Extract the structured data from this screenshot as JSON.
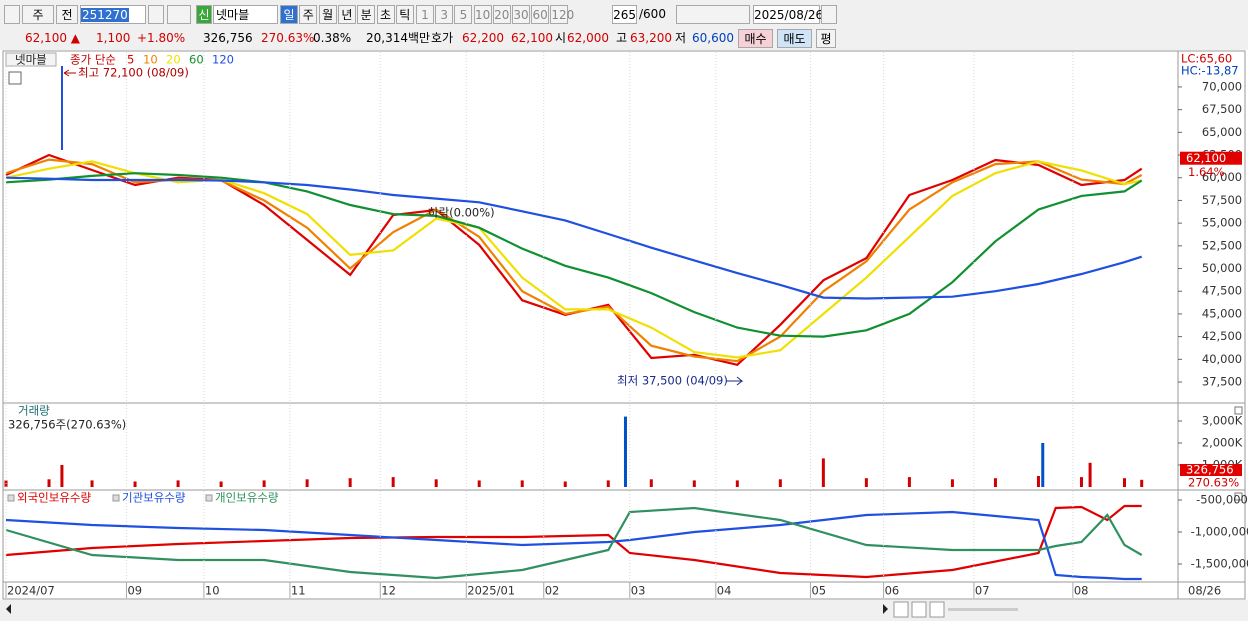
{
  "toolbar": {
    "period": "주",
    "compare": "전",
    "code": "251270",
    "badge": "신",
    "name": "넷마블",
    "intervals": [
      "일",
      "주",
      "월",
      "년",
      "분",
      "초",
      "틱"
    ],
    "multiples": [
      "1",
      "3",
      "5",
      "10",
      "20",
      "30",
      "60",
      "120"
    ],
    "count": "265",
    "max": "/600",
    "date": "2025/08/26"
  },
  "quote": {
    "price": "62,100 ▲",
    "change": "1,100",
    "change_pct": "+1.80%",
    "volume": "326,756",
    "volume_pct": "270.63%",
    "turnover": "0.38%",
    "amount": "20,314백만",
    "bid_ask_label": "호가",
    "ask": "62,200",
    "bid": "62,100",
    "open_label": "시",
    "open": "62,000",
    "high_label": "고",
    "high": "63,200",
    "low_label": "저",
    "low": "60,600",
    "buy": "매수",
    "sell": "매도",
    "avg": "평"
  },
  "chart_data": [
    {
      "type": "line",
      "title": "넷마블",
      "subtitle": "종가 단순",
      "x": [
        0,
        10,
        20,
        30,
        40,
        50,
        60,
        70,
        80,
        90,
        100,
        110,
        120,
        130,
        140,
        150,
        160,
        170,
        180,
        190,
        200,
        210,
        220,
        230,
        240,
        250,
        260,
        264
      ],
      "xlim": [
        0,
        265
      ],
      "series": [
        {
          "name": "5",
          "color": "#e00000",
          "values": [
            60300,
            62500,
            60850,
            59200,
            60000,
            59750,
            57000,
            53150,
            49300,
            55900,
            56450,
            52600,
            46500,
            44900,
            46000,
            40150,
            40500,
            39400,
            43800,
            48700,
            51150,
            58100,
            59750,
            61950,
            61400,
            59200,
            59750,
            61000
          ]
        },
        {
          "name": "10",
          "color": "#f08000",
          "values": [
            60500,
            62000,
            61500,
            59500,
            59800,
            59700,
            57500,
            54500,
            50000,
            54000,
            56500,
            53500,
            47500,
            45000,
            45800,
            41500,
            40300,
            39800,
            42500,
            47500,
            50800,
            56500,
            59500,
            61500,
            61800,
            59800,
            59300,
            60300
          ]
        },
        {
          "name": "20",
          "color": "#f0e000",
          "values": [
            60000,
            61000,
            61800,
            60500,
            59500,
            59800,
            58300,
            56000,
            51500,
            52000,
            55500,
            54500,
            49000,
            45500,
            45500,
            43500,
            40800,
            40200,
            41000,
            45000,
            49000,
            53500,
            58000,
            60500,
            61800,
            60800,
            59300,
            59700
          ]
        },
        {
          "name": "60",
          "color": "#109030",
          "values": [
            59500,
            59800,
            60200,
            60500,
            60300,
            60000,
            59500,
            58500,
            57000,
            56000,
            55800,
            54500,
            52200,
            50300,
            49000,
            47300,
            45200,
            43500,
            42600,
            42500,
            43200,
            45000,
            48500,
            53000,
            56500,
            58000,
            58500,
            59700
          ]
        },
        {
          "name": "120",
          "color": "#2050e0",
          "values": [
            60000,
            59900,
            59750,
            59750,
            59750,
            59700,
            59500,
            59200,
            58700,
            58100,
            57700,
            57300,
            56300,
            55300,
            53800,
            52300,
            50900,
            49500,
            48200,
            46800,
            46700,
            46800,
            46900,
            47500,
            48300,
            49400,
            50700,
            51300
          ]
        }
      ],
      "ylim": [
        35300,
        73850
      ],
      "yticks": [
        {
          "value": 37500,
          "label": "37,500"
        },
        {
          "value": 40000,
          "label": "40,000"
        },
        {
          "value": 42500,
          "label": "42,500"
        },
        {
          "value": 45000,
          "label": "45,000"
        },
        {
          "value": 47500,
          "label": "47,500"
        },
        {
          "value": 50000,
          "label": "50,000"
        },
        {
          "value": 52500,
          "label": "52,500"
        },
        {
          "value": 55000,
          "label": "55,000"
        },
        {
          "value": 57500,
          "label": "57,500"
        },
        {
          "value": 60000,
          "label": "60,000"
        },
        {
          "value": 62500,
          "label": "62,500"
        },
        {
          "value": 65000,
          "label": "65,000"
        },
        {
          "value": 67500,
          "label": "67,500"
        },
        {
          "value": 70000,
          "label": "70,000"
        }
      ],
      "annotations": [
        "최고 72,100 (08/09)",
        "최저 37,500 (04/09)",
        "하락(0.00%)"
      ],
      "right_labels": [
        "LC:65,60",
        "HC:-13,87"
      ],
      "last_value": {
        "value": 62100,
        "label": "62,100"
      },
      "last_pct": "1.64%"
    },
    {
      "type": "bar",
      "title": "거래량",
      "subtitle": "326,756주(270.63%)",
      "x": [
        0,
        10,
        13,
        20,
        30,
        40,
        50,
        60,
        70,
        80,
        90,
        100,
        110,
        120,
        130,
        140,
        144,
        150,
        160,
        170,
        180,
        190,
        200,
        210,
        220,
        230,
        240,
        241,
        250,
        252,
        260,
        264
      ],
      "xlim": [
        0,
        265
      ],
      "values": [
        300,
        350,
        1000,
        300,
        250,
        300,
        250,
        300,
        350,
        400,
        450,
        350,
        300,
        300,
        250,
        300,
        3200,
        350,
        300,
        300,
        350,
        1300,
        400,
        450,
        350,
        400,
        500,
        2000,
        450,
        1100,
        400,
        326.756
      ],
      "colors": [
        "#d00000",
        "#d00000",
        "#d00000",
        "#d00000",
        "#d00000",
        "#d00000",
        "#d00000",
        "#d00000",
        "#d00000",
        "#d00000",
        "#d00000",
        "#d00000",
        "#d00000",
        "#d00000",
        "#d00000",
        "#d00000",
        "#0050c8",
        "#d00000",
        "#d00000",
        "#d00000",
        "#d00000",
        "#d00000",
        "#d00000",
        "#d00000",
        "#d00000",
        "#d00000",
        "#d00000",
        "#0050c8",
        "#d00000",
        "#d00000",
        "#d00000",
        "#d00000"
      ],
      "ylim": [
        0,
        3727
      ],
      "yticks": [
        {
          "value": 1000,
          "label": "1,000K"
        },
        {
          "value": 2000,
          "label": "2,000K"
        },
        {
          "value": 3000,
          "label": "3,000K"
        }
      ],
      "last_value": {
        "value": 326.756,
        "label": "326,756"
      },
      "last_pct": "270.63%"
    },
    {
      "type": "line",
      "x": [
        0,
        20,
        40,
        60,
        80,
        100,
        120,
        140,
        145,
        160,
        180,
        200,
        220,
        240,
        244,
        250,
        256,
        260,
        264
      ],
      "xlim": [
        0,
        265
      ],
      "series": [
        {
          "name": "외국인보유수량",
          "color": "#e00000",
          "values": [
            -1359000,
            -1250000,
            -1187500,
            -1140600,
            -1093800,
            -1078100,
            -1078100,
            -1046900,
            -1328100,
            -1437500,
            -1640600,
            -1703100,
            -1593800,
            -1328100,
            -625000,
            -609400,
            -812500,
            -593800,
            -593800
          ]
        },
        {
          "name": "기관보유수량",
          "color": "#2050e0",
          "values": [
            -812500,
            -890600,
            -937500,
            -968800,
            -1046900,
            -1125000,
            -1203100,
            -1156300,
            -1125000,
            -1000000,
            -890600,
            -734400,
            -687500,
            -812500,
            -1671900,
            -1703100,
            -1718800,
            -1734400,
            -1734400
          ]
        },
        {
          "name": "개인보유수량",
          "color": "#309060",
          "values": [
            -968800,
            -1359400,
            -1437500,
            -1437500,
            -1625000,
            -1718800,
            -1593800,
            -1281300,
            -687500,
            -625000,
            -812500,
            -1203100,
            -1281300,
            -1281300,
            -1218800,
            -1156300,
            -734400,
            -1203100,
            -1359400
          ]
        }
      ],
      "ylim": [
        -1781250,
        -375000
      ],
      "yticks": [
        {
          "value": -1500000,
          "label": "-1,500,000"
        },
        {
          "value": -1000000,
          "label": "-1,000,000"
        },
        {
          "value": -500000,
          "label": "-500,000"
        }
      ],
      "xticks": [
        {
          "value": 0,
          "label": "2024/07"
        },
        {
          "value": 28,
          "label": "09"
        },
        {
          "value": 46,
          "label": "10"
        },
        {
          "value": 66,
          "label": "11"
        },
        {
          "value": 87,
          "label": "12"
        },
        {
          "value": 107,
          "label": "2025/01"
        },
        {
          "value": 125,
          "label": "02"
        },
        {
          "value": 145,
          "label": "03"
        },
        {
          "value": 165,
          "label": "04"
        },
        {
          "value": 187,
          "label": "05"
        },
        {
          "value": 204,
          "label": "06"
        },
        {
          "value": 225,
          "label": "07"
        },
        {
          "value": 248,
          "label": "08"
        }
      ],
      "x_end_label": "08/26",
      "grid": true
    }
  ]
}
